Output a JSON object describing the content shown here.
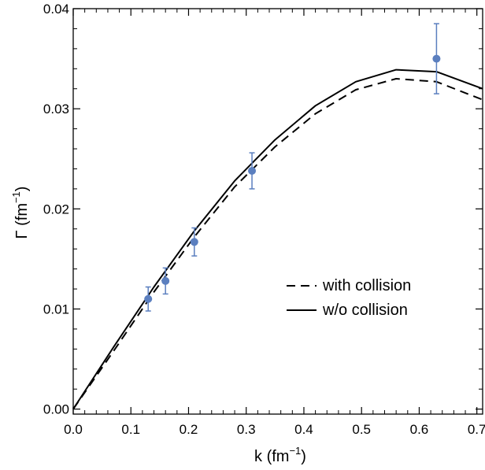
{
  "chart_data": {
    "type": "line",
    "xlabel": "k (fm",
    "xlabel_sup": "−1",
    "xlabel_end": ")",
    "ylabel": "Γ (fm",
    "ylabel_sup": "−1",
    "ylabel_end": ")",
    "xlim": [
      0,
      0.71
    ],
    "ylim": [
      -0.0005,
      0.04
    ],
    "xticks": [
      0.0,
      0.1,
      0.2,
      0.3,
      0.4,
      0.5,
      0.6,
      0.7
    ],
    "xtick_labels": [
      "0.0",
      "0.1",
      "0.2",
      "0.3",
      "0.4",
      "0.5",
      "0.6",
      "0.7"
    ],
    "yticks": [
      0.0,
      0.01,
      0.02,
      0.03,
      0.04
    ],
    "ytick_labels": [
      "0.00",
      "0.01",
      "0.02",
      "0.03",
      "0.04"
    ],
    "grid": false,
    "legend_position": "center-right",
    "series": [
      {
        "name": "with collision",
        "style": "dashed",
        "color": "#000000",
        "x": [
          0.0,
          0.07,
          0.14,
          0.21,
          0.28,
          0.35,
          0.42,
          0.49,
          0.56,
          0.63,
          0.71
        ],
        "y": [
          0.0,
          0.0058,
          0.0117,
          0.0172,
          0.0222,
          0.0262,
          0.0295,
          0.0319,
          0.033,
          0.0327,
          0.0309
        ]
      },
      {
        "name": "w/o collision",
        "style": "solid",
        "color": "#000000",
        "x": [
          0.0,
          0.07,
          0.14,
          0.21,
          0.28,
          0.35,
          0.42,
          0.49,
          0.56,
          0.63,
          0.71
        ],
        "y": [
          0.0,
          0.0062,
          0.0122,
          0.0178,
          0.0228,
          0.0269,
          0.0303,
          0.0327,
          0.0339,
          0.0337,
          0.032
        ]
      },
      {
        "type": "scatter",
        "color": "#5b7fbf",
        "x": [
          0.13,
          0.16,
          0.21,
          0.31,
          0.63
        ],
        "y": [
          0.011,
          0.0128,
          0.0167,
          0.0238,
          0.035
        ],
        "yerr": [
          0.0012,
          0.0013,
          0.0014,
          0.0018,
          0.0035
        ]
      }
    ]
  }
}
